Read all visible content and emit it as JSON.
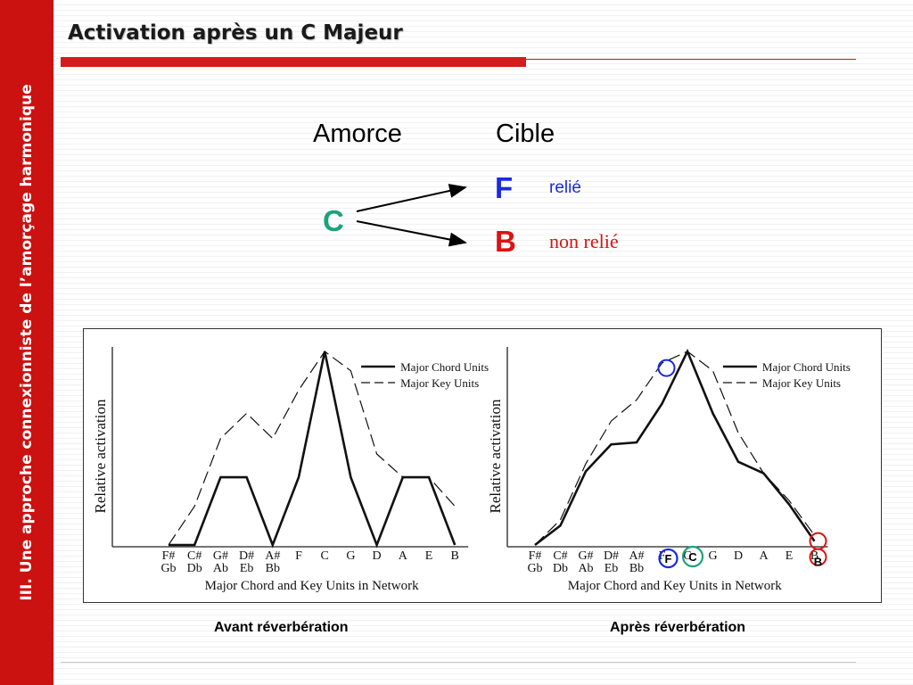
{
  "sidebar": {
    "text": "III. Une approche connexionniste de l’amorçage harmonique"
  },
  "title": "Activation après un C Majeur",
  "diagram": {
    "prime_heading": "Amorce",
    "target_heading": "Cible",
    "prime_chord": "C",
    "related_target": "F",
    "unrelated_target": "B",
    "related_label": "relié",
    "unrelated_label": "non relié",
    "colors": {
      "prime": "#1aa37a",
      "related": "#1a2ae0",
      "unrelated": "#dd1111"
    }
  },
  "chart_data": [
    {
      "type": "line",
      "ylabel": "Relative activation",
      "xlabel": "Major Chord and Key Units in Network",
      "categories": [
        "F#\nGb",
        "C#\nDb",
        "G#\nAb",
        "D#\nEb",
        "A#\nBb",
        "F",
        "C",
        "G",
        "D",
        "A",
        "E",
        "B"
      ],
      "ylim": [
        0,
        1
      ],
      "legend_position": "top-right",
      "series": [
        {
          "name": "Major Chord Units",
          "style": "solid",
          "values": [
            0.0,
            0.0,
            0.35,
            0.35,
            0.0,
            0.35,
            1.0,
            0.35,
            0.0,
            0.35,
            0.35,
            0.0
          ]
        },
        {
          "name": "Major Key Units",
          "style": "dashed",
          "values": [
            0.0,
            0.2,
            0.55,
            0.68,
            0.55,
            0.8,
            1.0,
            0.9,
            0.47,
            0.35,
            0.35,
            0.2
          ]
        }
      ]
    },
    {
      "type": "line",
      "ylabel": "Relative activation",
      "xlabel": "Major Chord and Key Units in Network",
      "categories": [
        "F#\nGb",
        "C#\nDb",
        "G#\nAb",
        "D#\nEb",
        "A#\nBb",
        "F",
        "C",
        "G",
        "D",
        "A",
        "E",
        "B"
      ],
      "ylim": [
        0,
        1
      ],
      "legend_position": "top-right",
      "series": [
        {
          "name": "Major Chord Units",
          "style": "solid",
          "values": [
            0.0,
            0.1,
            0.38,
            0.52,
            0.53,
            0.73,
            1.0,
            0.68,
            0.43,
            0.37,
            0.21,
            0.02
          ]
        },
        {
          "name": "Major Key Units",
          "style": "dashed",
          "values": [
            0.0,
            0.13,
            0.42,
            0.64,
            0.75,
            0.94,
            1.0,
            0.9,
            0.58,
            0.37,
            0.23,
            0.05
          ]
        }
      ],
      "highlights": [
        {
          "label": "F",
          "index": 5,
          "color": "#1a2ae0"
        },
        {
          "label": "C",
          "index": 6,
          "color": "#1aa37a"
        },
        {
          "label": "B",
          "index": 11,
          "color": "#dd1111"
        }
      ]
    }
  ],
  "captions": {
    "before": "Avant réverbération",
    "after": "Après réverbération"
  }
}
